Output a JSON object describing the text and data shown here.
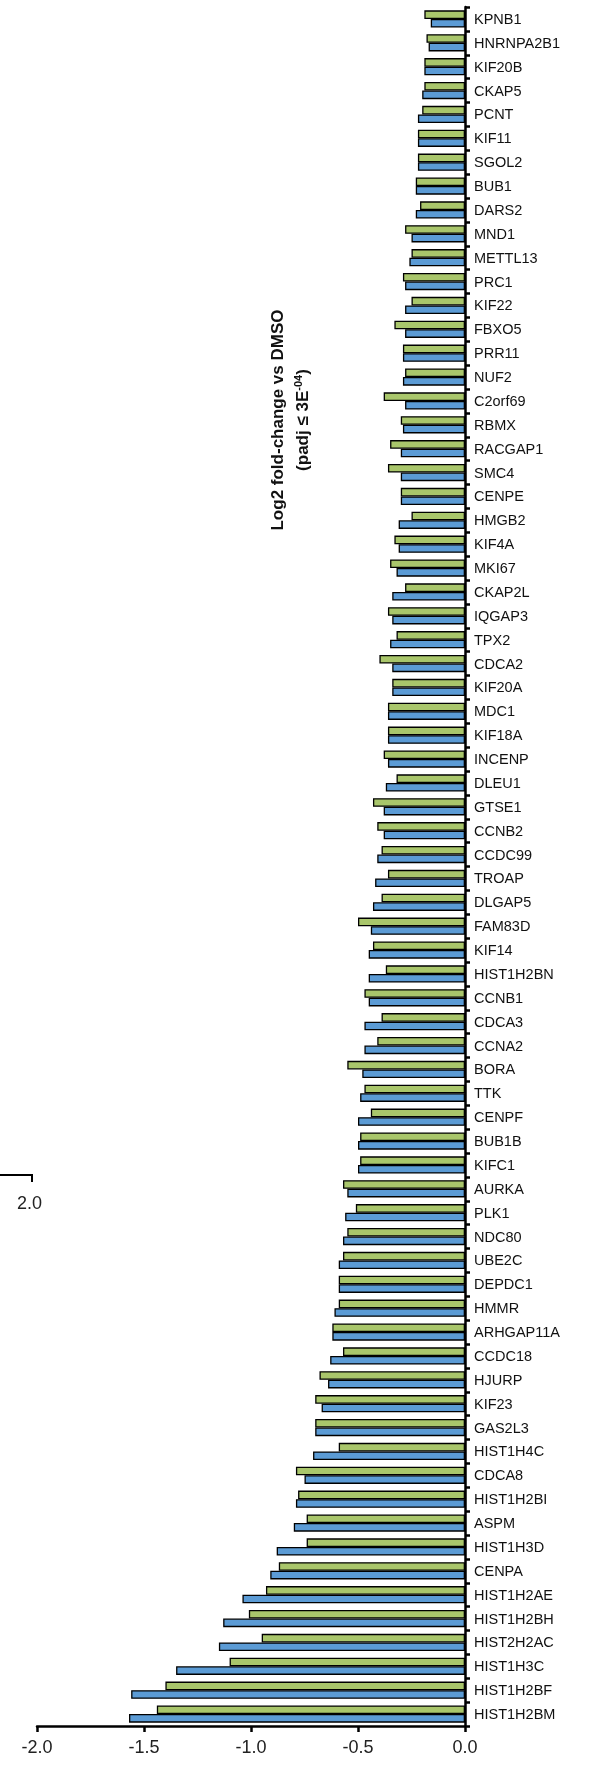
{
  "chart_data": {
    "type": "bar",
    "orientation": "horizontal",
    "ylabel": "Log2 fold-change vs DMSO\n(padj ≤ 3E$^{-04}$)",
    "categories": [
      "KPNB1",
      "HNRNPA2B1",
      "KIF20B",
      "CKAP5",
      "PCNT",
      "KIF11",
      "SGOL2",
      "BUB1",
      "DARS2",
      "MND1",
      "METTL13",
      "PRC1",
      "KIF22",
      "FBXO5",
      "PRR11",
      "NUF2",
      "C2orf69",
      "RBMX",
      "RACGAP1",
      "SMC4",
      "CENPE",
      "HMGB2",
      "KIF4A",
      "MKI67",
      "CKAP2L",
      "IQGAP3",
      "TPX2",
      "CDCA2",
      "KIF20A",
      "MDC1",
      "KIF18A",
      "INCENP",
      "DLEU1",
      "GTSE1",
      "CCNB2",
      "CCDC99",
      "TROAP",
      "DLGAP5",
      "FAM83D",
      "KIF14",
      "HIST1H2BN",
      "CCNB1",
      "CDCA3",
      "CCNA2",
      "BORA",
      "TTK",
      "CENPF",
      "BUB1B",
      "KIFC1",
      "AURKA",
      "PLK1",
      "NDC80",
      "UBE2C",
      "DEPDC1",
      "HMMR",
      "ARHGAP11A",
      "CCDC18",
      "HJURP",
      "KIF23",
      "GAS2L3",
      "HIST1H4C",
      "CDCA8",
      "HIST1H2BI",
      "ASPM",
      "HIST1H3D",
      "CENPA",
      "HIST1H2AE",
      "HIST1H2BH",
      "HIST2H2AC",
      "HIST1H3C",
      "HIST1H2BF",
      "HIST1H2BM"
    ],
    "series": [
      {
        "color": "#a9c66b",
        "values": [
          -0.19,
          -0.18,
          -0.19,
          -0.19,
          -0.2,
          -0.22,
          -0.22,
          -0.23,
          -0.21,
          -0.28,
          -0.25,
          -0.29,
          -0.25,
          -0.33,
          -0.29,
          -0.28,
          -0.38,
          -0.3,
          -0.35,
          -0.36,
          -0.3,
          -0.25,
          -0.33,
          -0.35,
          -0.28,
          -0.36,
          -0.32,
          -0.4,
          -0.34,
          -0.36,
          -0.36,
          -0.38,
          -0.32,
          -0.43,
          -0.41,
          -0.39,
          -0.36,
          -0.39,
          -0.5,
          -0.43,
          -0.37,
          -0.47,
          -0.39,
          -0.41,
          -0.55,
          -0.47,
          -0.44,
          -0.49,
          -0.49,
          -0.57,
          -0.51,
          -0.55,
          -0.57,
          -0.59,
          -0.59,
          -0.62,
          -0.57,
          -0.68,
          -0.7,
          -0.7,
          -0.59,
          -0.79,
          -0.78,
          -0.74,
          -0.74,
          -0.87,
          -0.93,
          -1.01,
          -0.95,
          -1.1,
          -1.4,
          -1.44
        ]
      },
      {
        "color": "#5b9bd5",
        "values": [
          -0.16,
          -0.17,
          -0.19,
          -0.2,
          -0.22,
          -0.22,
          -0.22,
          -0.23,
          -0.23,
          -0.25,
          -0.26,
          -0.28,
          -0.28,
          -0.28,
          -0.29,
          -0.29,
          -0.28,
          -0.29,
          -0.3,
          -0.3,
          -0.3,
          -0.31,
          -0.31,
          -0.32,
          -0.34,
          -0.34,
          -0.35,
          -0.34,
          -0.34,
          -0.36,
          -0.36,
          -0.36,
          -0.37,
          -0.38,
          -0.38,
          -0.41,
          -0.42,
          -0.43,
          -0.44,
          -0.45,
          -0.45,
          -0.45,
          -0.47,
          -0.47,
          -0.48,
          -0.49,
          -0.5,
          -0.5,
          -0.5,
          -0.55,
          -0.56,
          -0.57,
          -0.59,
          -0.59,
          -0.61,
          -0.62,
          -0.63,
          -0.64,
          -0.67,
          -0.7,
          -0.71,
          -0.75,
          -0.79,
          -0.8,
          -0.88,
          -0.91,
          -1.04,
          -1.13,
          -1.15,
          -1.35,
          -1.56,
          -1.57
        ]
      }
    ],
    "xlim": [
      -2,
      0
    ],
    "xticks": [
      {
        "value": -2,
        "label": "-2.0"
      },
      {
        "value": -1.5,
        "label": "-1.5"
      },
      {
        "value": -1,
        "label": "-1.0"
      },
      {
        "value": -0.5,
        "label": "-0.5"
      },
      {
        "value": 0,
        "label": "0.0"
      }
    ],
    "grid": false,
    "annotations": [
      "2.0"
    ]
  }
}
